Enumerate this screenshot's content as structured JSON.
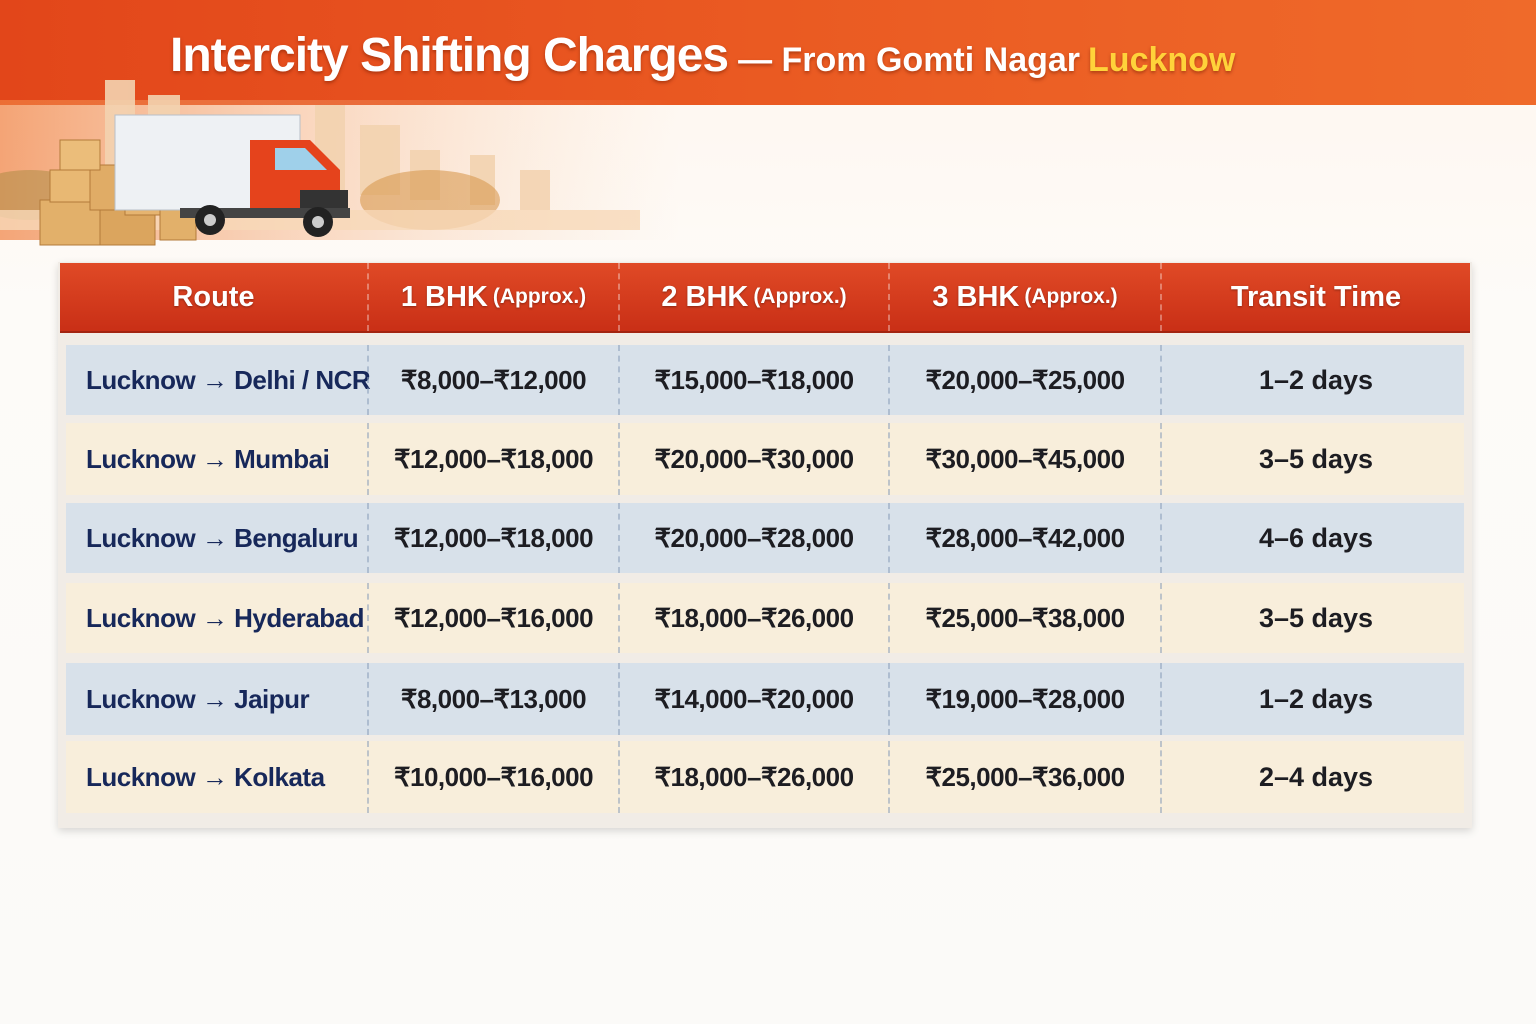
{
  "header": {
    "title": "Intercity Shifting Charges",
    "subtitle": "— From Gomti Nagar",
    "highlight": "Lucknow"
  },
  "table": {
    "columns": [
      {
        "label": "Route"
      },
      {
        "label": "1 BHK",
        "note": "(Approx.)"
      },
      {
        "label": "2 BHK",
        "note": "(Approx.)"
      },
      {
        "label": "3 BHK",
        "note": "(Approx.)"
      },
      {
        "label": "Transit Time"
      }
    ],
    "rows": [
      [
        "Lucknow → Delhi / NCR",
        "₹8,000–₹12,000",
        "₹15,000–₹18,000",
        "₹20,000–₹25,000",
        "1–2 days"
      ],
      [
        "Lucknow → Mumbai",
        "₹12,000–₹18,000",
        "₹20,000–₹30,000",
        "₹30,000–₹45,000",
        "3–5 days"
      ],
      [
        "Lucknow → Bengaluru",
        "₹12,000–₹18,000",
        "₹20,000–₹28,000",
        "₹28,000–₹42,000",
        "4–6 days"
      ],
      [
        "Lucknow → Hyderabad",
        "₹12,000–₹16,000",
        "₹18,000–₹26,000",
        "₹25,000–₹38,000",
        "3–5 days"
      ],
      [
        "Lucknow → Jaipur",
        "₹8,000–₹13,000",
        "₹14,000–₹20,000",
        "₹19,000–₹28,000",
        "1–2 days"
      ],
      [
        "Lucknow → Kolkata",
        "₹10,000–₹16,000",
        "₹18,000–₹26,000",
        "₹25,000–₹36,000",
        "2–4 days"
      ]
    ]
  }
}
